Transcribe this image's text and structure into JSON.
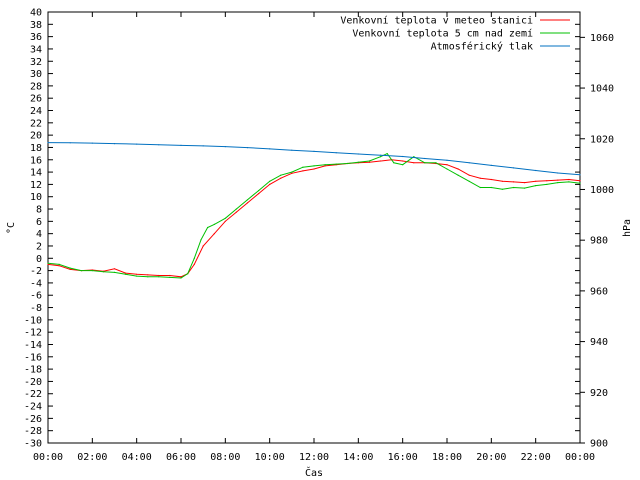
{
  "chart_data": {
    "type": "line",
    "xlabel": "Čas",
    "ylabel": "°C",
    "y2label": "hPa",
    "xlim": [
      0,
      24
    ],
    "ylim": [
      -30,
      40
    ],
    "y2lim": [
      900,
      1070
    ],
    "grid": false,
    "legend_position": "top-right",
    "x_ticks": [
      "00:00",
      "02:00",
      "04:00",
      "06:00",
      "08:00",
      "10:00",
      "12:00",
      "14:00",
      "16:00",
      "18:00",
      "20:00",
      "22:00",
      "00:00"
    ],
    "y_ticks": [
      -30,
      -28,
      -26,
      -24,
      -22,
      -20,
      -18,
      -16,
      -14,
      -12,
      -10,
      -8,
      -6,
      -4,
      -2,
      0,
      2,
      4,
      6,
      8,
      10,
      12,
      14,
      16,
      18,
      20,
      22,
      24,
      26,
      28,
      30,
      32,
      34,
      36,
      38,
      40
    ],
    "y2_ticks": [
      900,
      920,
      940,
      960,
      980,
      1000,
      1020,
      1040,
      1060
    ],
    "series": [
      {
        "name": "Venkovní teplota v meteo stanici",
        "color": "#ff0000",
        "axis": "left",
        "x": [
          0,
          0.5,
          1,
          1.5,
          2,
          2.5,
          3,
          3.5,
          4,
          4.5,
          5,
          5.5,
          6,
          6.3,
          6.6,
          7,
          7.5,
          8,
          8.5,
          9,
          9.5,
          10,
          10.5,
          11,
          11.5,
          12,
          12.5,
          13,
          13.5,
          14,
          14.5,
          15,
          15.5,
          16,
          16.5,
          17,
          17.5,
          18,
          18.5,
          19,
          19.5,
          20,
          20.5,
          21,
          21.5,
          22,
          22.5,
          23,
          23.5,
          24
        ],
        "y": [
          -1,
          -1.2,
          -1.8,
          -2,
          -1.9,
          -2.1,
          -1.7,
          -2.4,
          -2.6,
          -2.7,
          -2.8,
          -2.8,
          -3,
          -2.5,
          -1,
          2,
          4,
          6,
          7.5,
          9,
          10.5,
          12,
          13,
          13.8,
          14.2,
          14.5,
          15,
          15.2,
          15.4,
          15.5,
          15.6,
          15.8,
          16,
          15.8,
          15.5,
          15.5,
          15.4,
          15.2,
          14.5,
          13.5,
          13,
          12.8,
          12.5,
          12.4,
          12.3,
          12.5,
          12.6,
          12.7,
          12.8,
          12.6
        ]
      },
      {
        "name": "Venkovní teplota 5 cm nad zemí",
        "color": "#00c000",
        "axis": "left",
        "x": [
          0,
          0.5,
          1,
          1.5,
          2,
          2.5,
          3,
          3.5,
          4,
          4.5,
          5,
          5.5,
          6,
          6.3,
          6.6,
          6.9,
          7.2,
          7.5,
          8,
          8.5,
          9,
          9.5,
          10,
          10.5,
          11,
          11.5,
          12,
          12.5,
          13,
          13.5,
          14,
          14.5,
          15,
          15.3,
          15.6,
          16,
          16.5,
          17,
          17.5,
          18,
          18.5,
          19,
          19.5,
          20,
          20.5,
          21,
          21.5,
          22,
          22.5,
          23,
          23.5,
          24
        ],
        "y": [
          -0.8,
          -1,
          -1.6,
          -2,
          -2,
          -2.2,
          -2.3,
          -2.6,
          -2.9,
          -3,
          -3,
          -3.1,
          -3.2,
          -2.5,
          0,
          3,
          5,
          5.5,
          6.5,
          8,
          9.5,
          11,
          12.5,
          13.5,
          14,
          14.8,
          15,
          15.2,
          15.3,
          15.4,
          15.6,
          15.8,
          16.5,
          17,
          15.5,
          15.2,
          16.5,
          15.5,
          15.5,
          14.5,
          13.5,
          12.5,
          11.5,
          11.5,
          11.2,
          11.5,
          11.4,
          11.8,
          12,
          12.3,
          12.4,
          12.2
        ]
      },
      {
        "name": "Atmosférický tlak",
        "color": "#0070c0",
        "axis": "right",
        "x": [
          0,
          1,
          2,
          3,
          4,
          5,
          6,
          7,
          8,
          9,
          10,
          11,
          12,
          13,
          14,
          15,
          16,
          17,
          18,
          19,
          20,
          21,
          22,
          23,
          24
        ],
        "y": [
          1018.5,
          1018.4,
          1018.3,
          1018.1,
          1017.9,
          1017.6,
          1017.4,
          1017.2,
          1016.9,
          1016.5,
          1016,
          1015.5,
          1015,
          1014.5,
          1014,
          1013.5,
          1013,
          1012.2,
          1011.5,
          1010.5,
          1009.5,
          1008.5,
          1007.5,
          1006.5,
          1005.8
        ]
      }
    ]
  }
}
